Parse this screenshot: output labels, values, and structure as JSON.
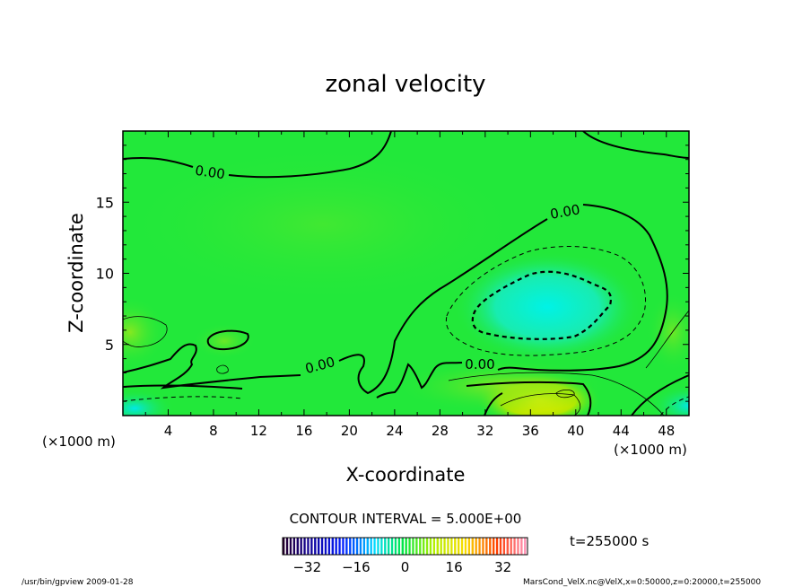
{
  "chart_data": {
    "type": "heatmap",
    "title": "zonal velocity",
    "xlabel": "X-coordinate",
    "ylabel": "Z-coordinate",
    "x_unit": "(×1000 m)",
    "z_unit": "(×1000 m)",
    "xlim": [
      0,
      50
    ],
    "ylim": [
      0,
      20
    ],
    "x_ticks": [
      4,
      8,
      12,
      16,
      20,
      24,
      28,
      32,
      36,
      40,
      44,
      48
    ],
    "y_ticks": [
      5,
      10,
      15
    ],
    "contour_interval_text": "CONTOUR INTERVAL = 5.000E+00",
    "contour_label": "0.00",
    "time_text": "t=255000 s",
    "colorbar": {
      "min": -40,
      "max": 40,
      "ticks": [
        -32,
        -16,
        0,
        16,
        32
      ]
    },
    "footer_left": "/usr/bin/gpview  2009-01-28",
    "footer_right": "MarsCond_VelX.nc@VelX,x=0:50000,z=0:20000,t=255000",
    "colors": {
      "background_field": "#22e83a",
      "negative_core": "#00f0d8",
      "positive_core": "#f5f000",
      "contour": "#000000"
    }
  }
}
